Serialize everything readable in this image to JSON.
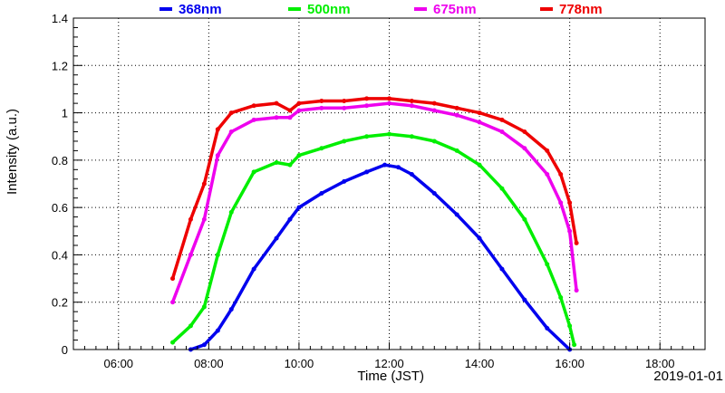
{
  "chart_data": {
    "type": "scatter",
    "title": "",
    "xlabel": "Time (JST)",
    "ylabel": "Intensity (a.u.)",
    "date_label": "2019-01-01",
    "x_range_hours": [
      5.0,
      19.0
    ],
    "ylim": [
      0,
      1.4
    ],
    "x_ticks": [
      {
        "hour": 6,
        "label": "06:00"
      },
      {
        "hour": 8,
        "label": "08:00"
      },
      {
        "hour": 10,
        "label": "10:00"
      },
      {
        "hour": 12,
        "label": "12:00"
      },
      {
        "hour": 14,
        "label": "14:00"
      },
      {
        "hour": 16,
        "label": "16:00"
      },
      {
        "hour": 18,
        "label": "18:00"
      }
    ],
    "y_ticks": [
      {
        "value": 0,
        "label": "0"
      },
      {
        "value": 0.2,
        "label": "0.2"
      },
      {
        "value": 0.4,
        "label": "0.4"
      },
      {
        "value": 0.6,
        "label": "0.6"
      },
      {
        "value": 0.8,
        "label": "0.8"
      },
      {
        "value": 1.0,
        "label": "1"
      },
      {
        "value": 1.2,
        "label": "1.2"
      },
      {
        "value": 1.4,
        "label": "1.4"
      }
    ],
    "grid": true,
    "legend_position": "top",
    "x_unit": "hour of day (JST)",
    "series": [
      {
        "name": "368nm",
        "color": "#0000ee",
        "x": [
          7.6,
          7.9,
          8.2,
          8.5,
          9.0,
          9.5,
          9.8,
          10.0,
          10.5,
          11.0,
          11.5,
          11.9,
          12.2,
          12.5,
          13.0,
          13.5,
          14.0,
          14.5,
          15.0,
          15.5,
          16.0
        ],
        "y": [
          0.0,
          0.02,
          0.08,
          0.17,
          0.34,
          0.47,
          0.55,
          0.6,
          0.66,
          0.71,
          0.75,
          0.78,
          0.77,
          0.74,
          0.66,
          0.57,
          0.47,
          0.34,
          0.21,
          0.09,
          0.0
        ]
      },
      {
        "name": "500nm",
        "color": "#00ee00",
        "x": [
          7.2,
          7.6,
          7.9,
          8.2,
          8.5,
          9.0,
          9.5,
          9.8,
          10.0,
          10.5,
          11.0,
          11.5,
          12.0,
          12.5,
          13.0,
          13.5,
          14.0,
          14.5,
          15.0,
          15.5,
          15.8,
          16.0,
          16.1
        ],
        "y": [
          0.03,
          0.1,
          0.18,
          0.4,
          0.58,
          0.75,
          0.79,
          0.78,
          0.82,
          0.85,
          0.88,
          0.9,
          0.91,
          0.9,
          0.88,
          0.84,
          0.78,
          0.68,
          0.55,
          0.36,
          0.22,
          0.1,
          0.02
        ]
      },
      {
        "name": "675nm",
        "color": "#ee00ee",
        "x": [
          7.2,
          7.6,
          7.9,
          8.2,
          8.5,
          9.0,
          9.5,
          9.8,
          10.0,
          10.5,
          11.0,
          11.5,
          12.0,
          12.5,
          13.0,
          13.5,
          14.0,
          14.5,
          15.0,
          15.5,
          15.8,
          16.0,
          16.15
        ],
        "y": [
          0.2,
          0.4,
          0.55,
          0.82,
          0.92,
          0.97,
          0.98,
          0.98,
          1.01,
          1.02,
          1.02,
          1.03,
          1.04,
          1.03,
          1.01,
          0.99,
          0.96,
          0.92,
          0.85,
          0.74,
          0.62,
          0.5,
          0.25
        ]
      },
      {
        "name": "778nm",
        "color": "#ee0000",
        "x": [
          7.2,
          7.6,
          7.9,
          8.2,
          8.5,
          9.0,
          9.5,
          9.8,
          10.0,
          10.5,
          11.0,
          11.5,
          12.0,
          12.5,
          13.0,
          13.5,
          14.0,
          14.5,
          15.0,
          15.5,
          15.8,
          16.0,
          16.15
        ],
        "y": [
          0.3,
          0.55,
          0.7,
          0.93,
          1.0,
          1.03,
          1.04,
          1.01,
          1.04,
          1.05,
          1.05,
          1.06,
          1.06,
          1.05,
          1.04,
          1.02,
          1.0,
          0.97,
          0.92,
          0.84,
          0.74,
          0.62,
          0.45
        ]
      }
    ]
  }
}
